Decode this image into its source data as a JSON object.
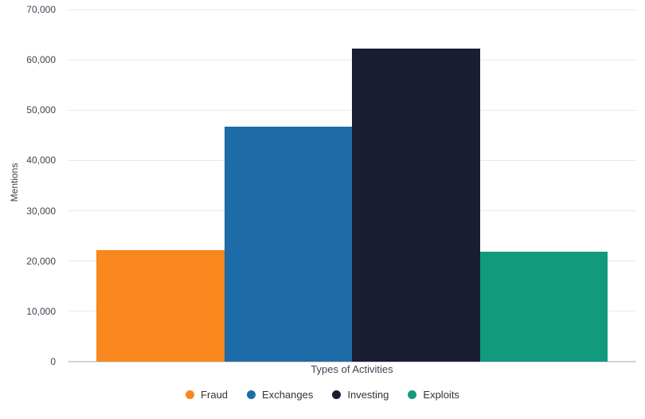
{
  "chart_data": {
    "type": "bar",
    "title": "",
    "xlabel": "Types of Activities",
    "ylabel": "Mentions",
    "categories": [
      "Types of Activities"
    ],
    "series": [
      {
        "name": "Fraud",
        "color": "#F8871E",
        "values": [
          22200
        ]
      },
      {
        "name": "Exchanges",
        "color": "#1D6CA8",
        "values": [
          46700
        ]
      },
      {
        "name": "Investing",
        "color": "#1B1D33",
        "values": [
          62200
        ]
      },
      {
        "name": "Exploits",
        "color": "#129A7C",
        "values": [
          21800
        ]
      }
    ],
    "ylim": [
      0,
      70000
    ],
    "yticks": [
      {
        "value": 0,
        "label": "0"
      },
      {
        "value": 10000,
        "label": "10,000"
      },
      {
        "value": 20000,
        "label": "20,000"
      },
      {
        "value": 30000,
        "label": "30,000"
      },
      {
        "value": 40000,
        "label": "40,000"
      },
      {
        "value": 50000,
        "label": "50,000"
      },
      {
        "value": 60000,
        "label": "60,000"
      },
      {
        "value": 70000,
        "label": "70,000"
      }
    ],
    "grid": "horizontal",
    "legend_position": "bottom",
    "legend": [
      "Fraud",
      "Exchanges",
      "Investing",
      "Exploits"
    ]
  },
  "colors": {
    "background": "#ffffff",
    "gridline": "#E9E9E9",
    "baseline": "#CDD4E2",
    "axis_text": "#3E4450",
    "legend_text": "#333333"
  }
}
